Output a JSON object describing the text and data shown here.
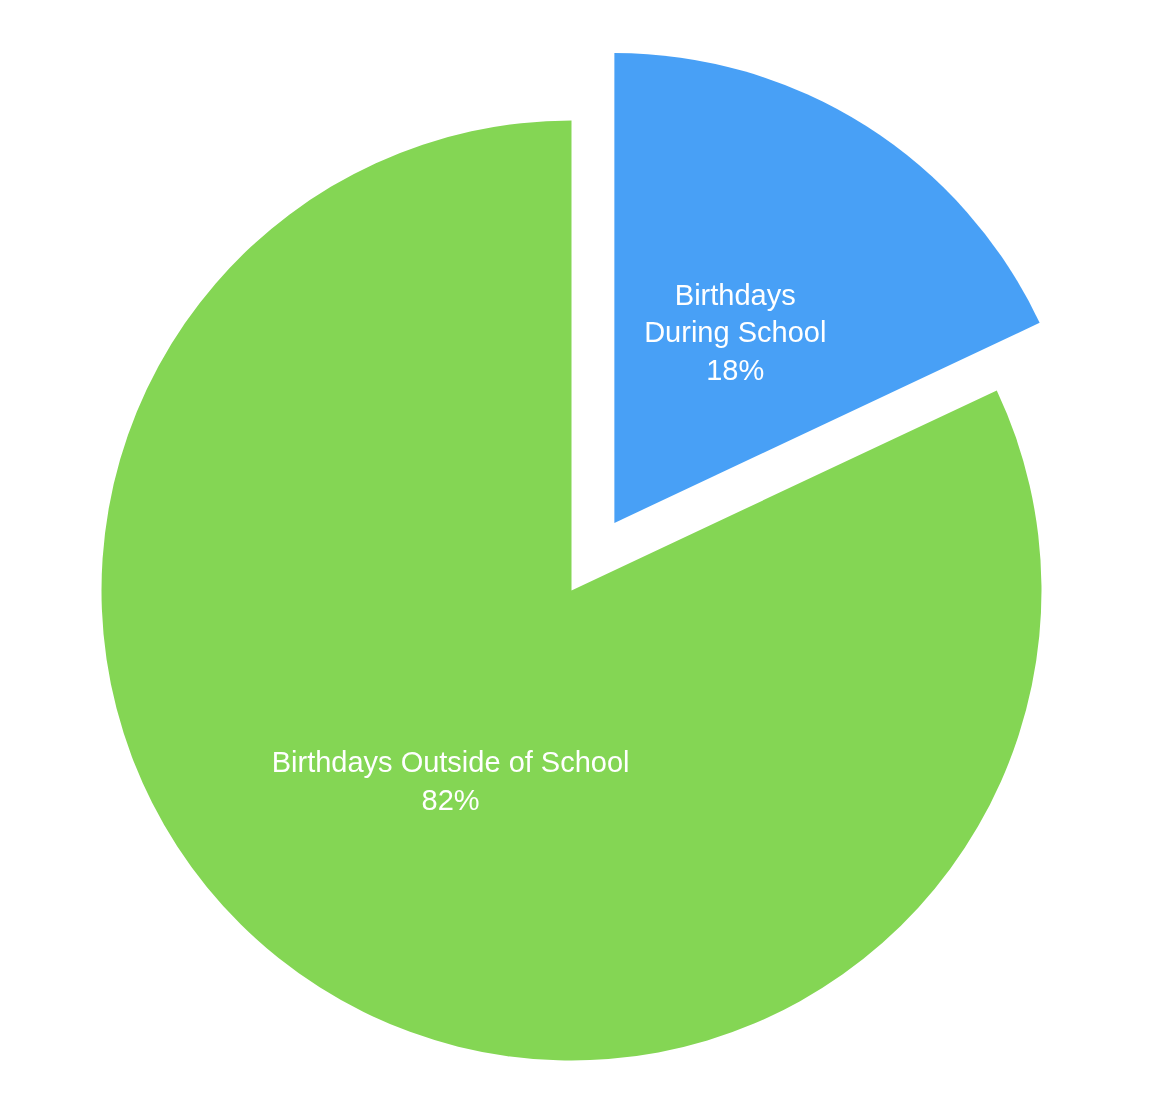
{
  "chart_data": {
    "type": "pie",
    "categories": [
      "Birthdays During School",
      "Birthdays Outside of School"
    ],
    "values": [
      18,
      82
    ],
    "colors": [
      "#48a0f6",
      "#84d654"
    ],
    "value_labels": [
      "18%",
      "82%"
    ]
  }
}
